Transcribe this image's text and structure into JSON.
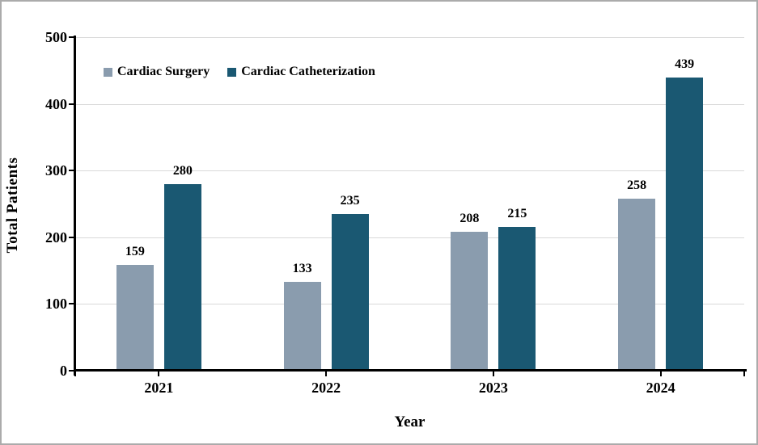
{
  "chart_data": {
    "type": "bar",
    "categories": [
      "2021",
      "2022",
      "2023",
      "2024"
    ],
    "series": [
      {
        "name": "Cardiac Surgery",
        "color": "#8A9CAE",
        "values": [
          159,
          133,
          208,
          258
        ]
      },
      {
        "name": "Cardiac Catheterization",
        "color": "#1A5872",
        "values": [
          280,
          235,
          215,
          439
        ]
      }
    ],
    "title": "",
    "xlabel": "Year",
    "ylabel": "Total Patients",
    "ylim": [
      0,
      500
    ],
    "ytick_step": 100,
    "y_tick_labels": [
      "0",
      "100",
      "200",
      "300",
      "400",
      "500"
    ],
    "grid": true,
    "legend_position": "top-left",
    "data_labels": true
  },
  "colors": {
    "background": "#FFFFFF",
    "border": "#ABABAB",
    "gridline": "#D9D9D9",
    "axis": "#000000",
    "text": "#000000"
  }
}
